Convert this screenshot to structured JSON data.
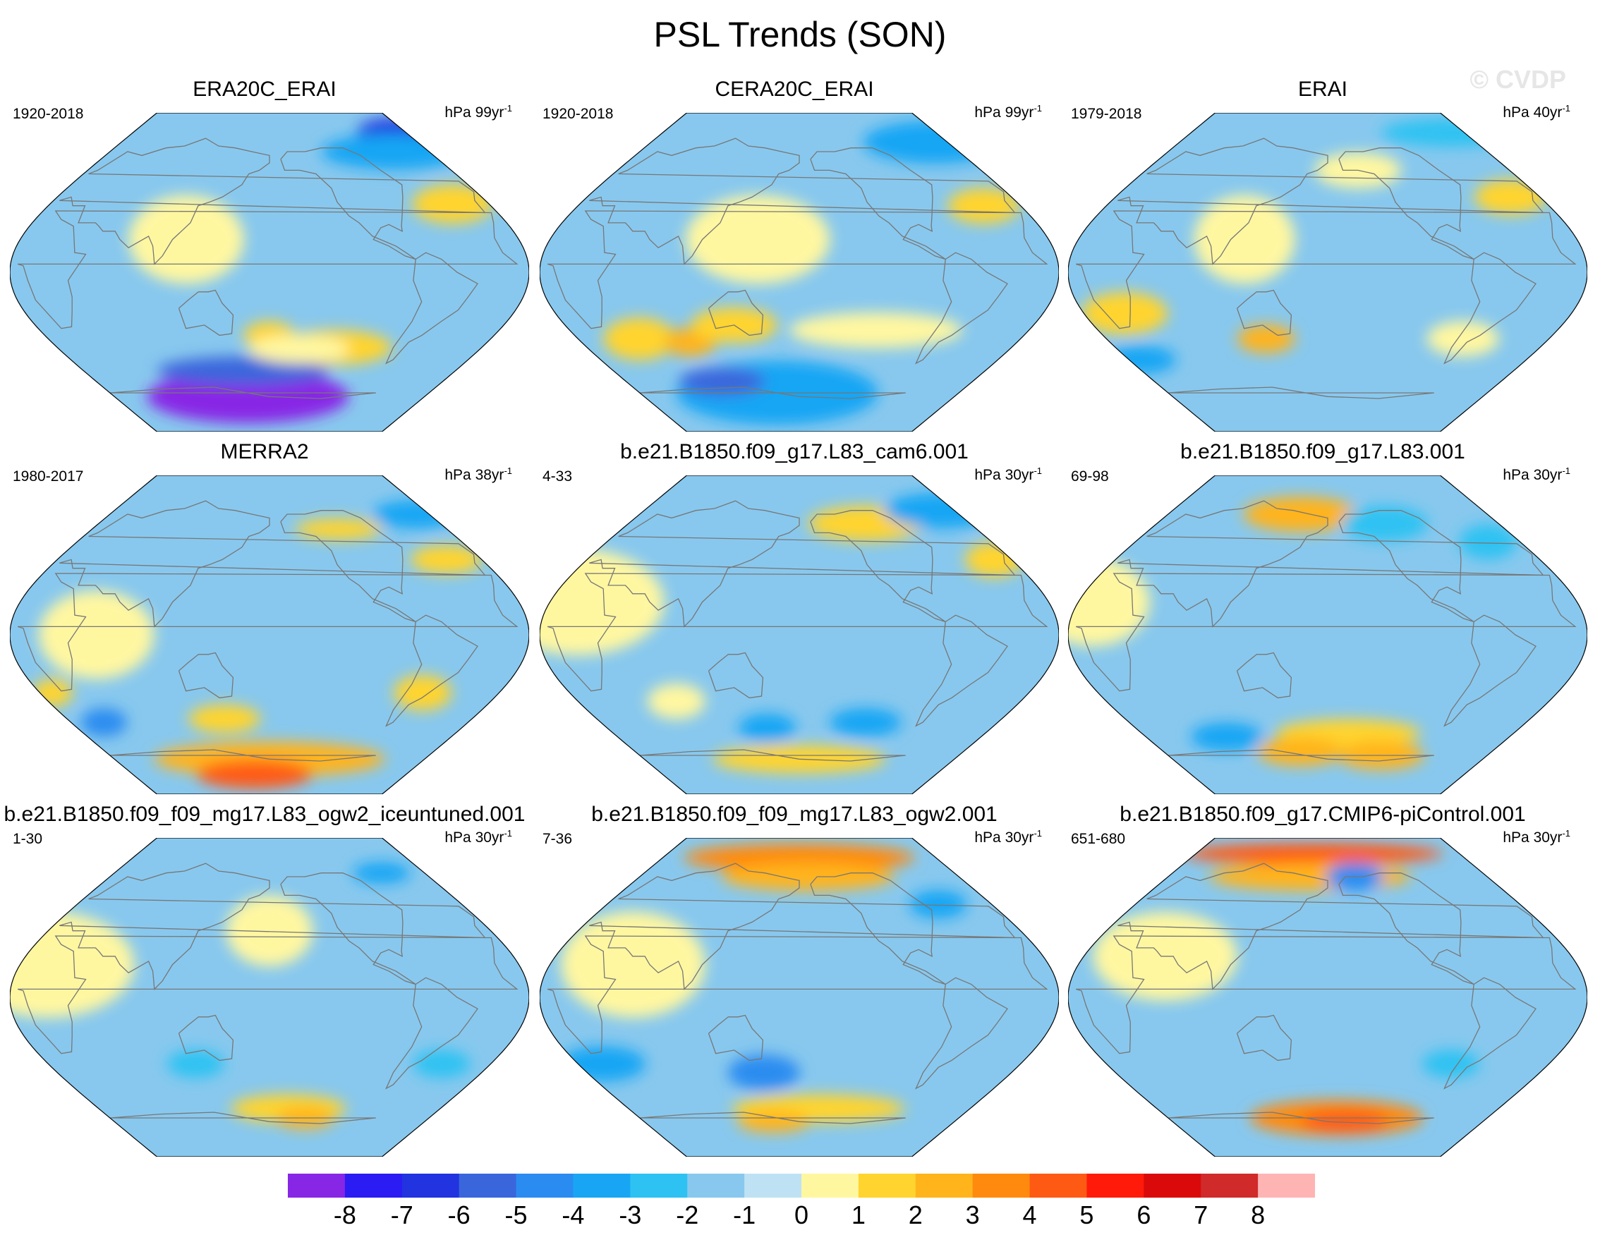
{
  "figure": {
    "title": "PSL Trends (SON)",
    "watermark": "© CVDP"
  },
  "panels": [
    {
      "title": "ERA20C_ERAI",
      "period": "1920-2018",
      "units_prefix": "hPa 99yr",
      "units_exp": "-1",
      "fill": [
        {
          "lon": -25,
          "lat": -72,
          "rx": 70,
          "ry": 15,
          "level": -8
        },
        {
          "lon": -25,
          "lat": -58,
          "rx": 60,
          "ry": 8,
          "level": -5
        },
        {
          "lon": 165,
          "lat": 80,
          "rx": 26,
          "ry": 8,
          "level": -6
        },
        {
          "lon": 140,
          "lat": 70,
          "rx": 50,
          "ry": 10,
          "level": -3
        },
        {
          "lon": 150,
          "lat": 41,
          "rx": 28,
          "ry": 11,
          "level": 2
        },
        {
          "lon": 55,
          "lat": -45,
          "rx": 40,
          "ry": 10,
          "level": 2
        },
        {
          "lon": 0,
          "lat": -38,
          "rx": 18,
          "ry": 8,
          "level": 2
        },
        {
          "lon": 25,
          "lat": -46,
          "rx": 35,
          "ry": 8,
          "level": 1
        },
        {
          "lon": -60,
          "lat": 20,
          "rx": 40,
          "ry": 25,
          "level": 1
        }
      ]
    },
    {
      "title": "CERA20C_ERAI",
      "period": "1920-2018",
      "units_prefix": "hPa 99yr",
      "units_exp": "-1",
      "fill": [
        {
          "lon": -25,
          "lat": -70,
          "rx": 70,
          "ry": 18,
          "level": -3
        },
        {
          "lon": -80,
          "lat": -64,
          "rx": 30,
          "ry": 8,
          "level": -5
        },
        {
          "lon": 165,
          "lat": 75,
          "rx": 50,
          "ry": 12,
          "level": -3
        },
        {
          "lon": 150,
          "lat": 40,
          "rx": 25,
          "ry": 10,
          "level": 2
        },
        {
          "lon": -130,
          "lat": -40,
          "rx": 25,
          "ry": 12,
          "level": 2
        },
        {
          "lon": -90,
          "lat": -42,
          "rx": 18,
          "ry": 8,
          "level": 3
        },
        {
          "lon": -50,
          "lat": -32,
          "rx": 30,
          "ry": 10,
          "level": 2
        },
        {
          "lon": -30,
          "lat": 20,
          "rx": 50,
          "ry": 25,
          "level": 1
        },
        {
          "lon": 60,
          "lat": -35,
          "rx": 60,
          "ry": 10,
          "level": 1
        }
      ]
    },
    {
      "title": "ERAI",
      "period": "1979-2018",
      "units_prefix": "hPa 40yr",
      "units_exp": "-1",
      "fill": [
        {
          "lon": -170,
          "lat": -52,
          "rx": 25,
          "ry": 8,
          "level": -3
        },
        {
          "lon": 165,
          "lat": 80,
          "rx": 50,
          "ry": 8,
          "level": -2
        },
        {
          "lon": 155,
          "lat": 45,
          "rx": 25,
          "ry": 10,
          "level": 2
        },
        {
          "lon": -150,
          "lat": -25,
          "rx": 30,
          "ry": 12,
          "level": 2
        },
        {
          "lon": -50,
          "lat": -40,
          "rx": 20,
          "ry": 8,
          "level": 3
        },
        {
          "lon": 30,
          "lat": 60,
          "rx": 30,
          "ry": 10,
          "level": 1
        },
        {
          "lon": 110,
          "lat": -40,
          "rx": 25,
          "ry": 10,
          "level": 1
        },
        {
          "lon": -60,
          "lat": 20,
          "rx": 35,
          "ry": 25,
          "level": 1
        }
      ]
    },
    {
      "title": "MERRA2",
      "period": "1980-2017",
      "units_prefix": "hPa 38yr",
      "units_exp": "-1",
      "fill": [
        {
          "lon": 0,
          "lat": -72,
          "rx": 80,
          "ry": 10,
          "level": 3
        },
        {
          "lon": -20,
          "lat": -80,
          "rx": 40,
          "ry": 8,
          "level": 5
        },
        {
          "lon": -150,
          "lat": -52,
          "rx": 16,
          "ry": 8,
          "level": -4
        },
        {
          "lon": 70,
          "lat": 62,
          "rx": 30,
          "ry": 6,
          "level": 2
        },
        {
          "lon": 150,
          "lat": 45,
          "rx": 25,
          "ry": 8,
          "level": 2
        },
        {
          "lon": 165,
          "lat": 70,
          "rx": 30,
          "ry": 8,
          "level": -3
        },
        {
          "lon": 120,
          "lat": -35,
          "rx": 20,
          "ry": 10,
          "level": 2
        },
        {
          "lon": -170,
          "lat": -35,
          "rx": 14,
          "ry": 8,
          "level": 2
        },
        {
          "lon": -40,
          "lat": -50,
          "rx": 25,
          "ry": 8,
          "level": 2
        },
        {
          "lon": -120,
          "lat": 0,
          "rx": 40,
          "ry": 25,
          "level": 1
        }
      ]
    },
    {
      "title": "b.e21.B1850.f09_g17.L83_cam6.001",
      "period": "4-33",
      "units_prefix": "hPa 30yr",
      "units_exp": "-1",
      "fill": [
        {
          "lon": 70,
          "lat": 65,
          "rx": 40,
          "ry": 10,
          "level": 2
        },
        {
          "lon": 165,
          "lat": 72,
          "rx": 40,
          "ry": 10,
          "level": -3
        },
        {
          "lon": 165,
          "lat": 45,
          "rx": 20,
          "ry": 10,
          "level": 2
        },
        {
          "lon": 60,
          "lat": -52,
          "rx": 25,
          "ry": 8,
          "level": -3
        },
        {
          "lon": -30,
          "lat": -55,
          "rx": 20,
          "ry": 8,
          "level": -3
        },
        {
          "lon": 0,
          "lat": -72,
          "rx": 60,
          "ry": 8,
          "level": 2
        },
        {
          "lon": -160,
          "lat": 20,
          "rx": 60,
          "ry": 30,
          "level": 1
        },
        {
          "lon": -100,
          "lat": -40,
          "rx": 20,
          "ry": 10,
          "level": 1
        }
      ]
    },
    {
      "title": "b.e21.B1850.f09_g17.L83.001",
      "period": "69-98",
      "units_prefix": "hPa 30yr",
      "units_exp": "-1",
      "fill": [
        {
          "lon": -30,
          "lat": 70,
          "rx": 40,
          "ry": 10,
          "level": 3
        },
        {
          "lon": 60,
          "lat": 65,
          "rx": 30,
          "ry": 10,
          "level": -2
        },
        {
          "lon": 150,
          "lat": 55,
          "rx": 20,
          "ry": 10,
          "level": -2
        },
        {
          "lon": -100,
          "lat": -60,
          "rx": 25,
          "ry": 8,
          "level": -3
        },
        {
          "lon": 20,
          "lat": -58,
          "rx": 50,
          "ry": 8,
          "level": 2
        },
        {
          "lon": -30,
          "lat": -68,
          "rx": 30,
          "ry": 8,
          "level": 3
        },
        {
          "lon": 60,
          "lat": -70,
          "rx": 30,
          "ry": 8,
          "level": 3
        },
        {
          "lon": -170,
          "lat": 20,
          "rx": 40,
          "ry": 25,
          "level": 1
        }
      ]
    },
    {
      "title": "b.e21.B1850.f09_f09_mg17.L83_ogw2_iceuntuned.001",
      "period": "1-30",
      "units_prefix": "hPa 30yr",
      "units_exp": "-1",
      "fill": [
        {
          "lon": 130,
          "lat": 72,
          "rx": 20,
          "ry": 6,
          "level": -3
        },
        {
          "lon": 20,
          "lat": -65,
          "rx": 40,
          "ry": 8,
          "level": 2
        },
        {
          "lon": 40,
          "lat": -70,
          "rx": 20,
          "ry": 6,
          "level": 3
        },
        {
          "lon": 140,
          "lat": -40,
          "rx": 20,
          "ry": 8,
          "level": -2
        },
        {
          "lon": -60,
          "lat": -40,
          "rx": 20,
          "ry": 8,
          "level": -2
        },
        {
          "lon": -160,
          "lat": 20,
          "rx": 60,
          "ry": 30,
          "level": 1
        },
        {
          "lon": 0,
          "lat": 40,
          "rx": 30,
          "ry": 20,
          "level": 1
        }
      ]
    },
    {
      "title": "b.e21.B1850.f09_f09_mg17.L83_ogw2.001",
      "period": "7-36",
      "units_prefix": "hPa 30yr",
      "units_exp": "-1",
      "fill": [
        {
          "lon": 0,
          "lat": 80,
          "rx": 80,
          "ry": 8,
          "level": 4
        },
        {
          "lon": 10,
          "lat": 70,
          "rx": 60,
          "ry": 8,
          "level": 3
        },
        {
          "lon": 130,
          "lat": 55,
          "rx": 20,
          "ry": 8,
          "level": -3
        },
        {
          "lon": -160,
          "lat": -40,
          "rx": 30,
          "ry": 10,
          "level": -3
        },
        {
          "lon": -30,
          "lat": -45,
          "rx": 25,
          "ry": 10,
          "level": -4
        },
        {
          "lon": 20,
          "lat": -65,
          "rx": 60,
          "ry": 8,
          "level": 2
        },
        {
          "lon": -30,
          "lat": -72,
          "rx": 25,
          "ry": 6,
          "level": 3
        },
        {
          "lon": -120,
          "lat": 20,
          "rx": 50,
          "ry": 30,
          "level": 1
        }
      ]
    },
    {
      "title": "b.e21.B1850.f09_g17.CMIP6-piControl.001",
      "period": "651-680",
      "units_prefix": "hPa 30yr",
      "units_exp": "-1",
      "fill": [
        {
          "lon": -20,
          "lat": 82,
          "rx": 90,
          "ry": 6,
          "level": 5
        },
        {
          "lon": -20,
          "lat": 70,
          "rx": 70,
          "ry": 8,
          "level": 3
        },
        {
          "lon": 30,
          "lat": 70,
          "rx": 20,
          "ry": 8,
          "level": -4
        },
        {
          "lon": 10,
          "lat": -70,
          "rx": 60,
          "ry": 10,
          "level": 4
        },
        {
          "lon": 20,
          "lat": -72,
          "rx": 30,
          "ry": 6,
          "level": 5
        },
        {
          "lon": -120,
          "lat": 25,
          "rx": 50,
          "ry": 25,
          "level": 1
        },
        {
          "lon": 100,
          "lat": -40,
          "rx": 20,
          "ry": 8,
          "level": -2
        }
      ]
    }
  ],
  "colorbar": {
    "tick_labels": [
      "-8",
      "-7",
      "-6",
      "-5",
      "-4",
      "-3",
      "-2",
      "-1",
      "0",
      "1",
      "2",
      "3",
      "4",
      "5",
      "6",
      "7",
      "8"
    ],
    "colors": [
      "#8826e6",
      "#2a1cf2",
      "#2233e0",
      "#3a66dc",
      "#2a8cf0",
      "#18a6f4",
      "#2ec2f2",
      "#88c8ee",
      "#bee2f4",
      "#fff7a0",
      "#ffd42e",
      "#ffb41c",
      "#ff8a0e",
      "#ff5a14",
      "#ff1a0a",
      "#da0a0a",
      "#d02a2a",
      "#ffb4b4"
    ]
  }
}
